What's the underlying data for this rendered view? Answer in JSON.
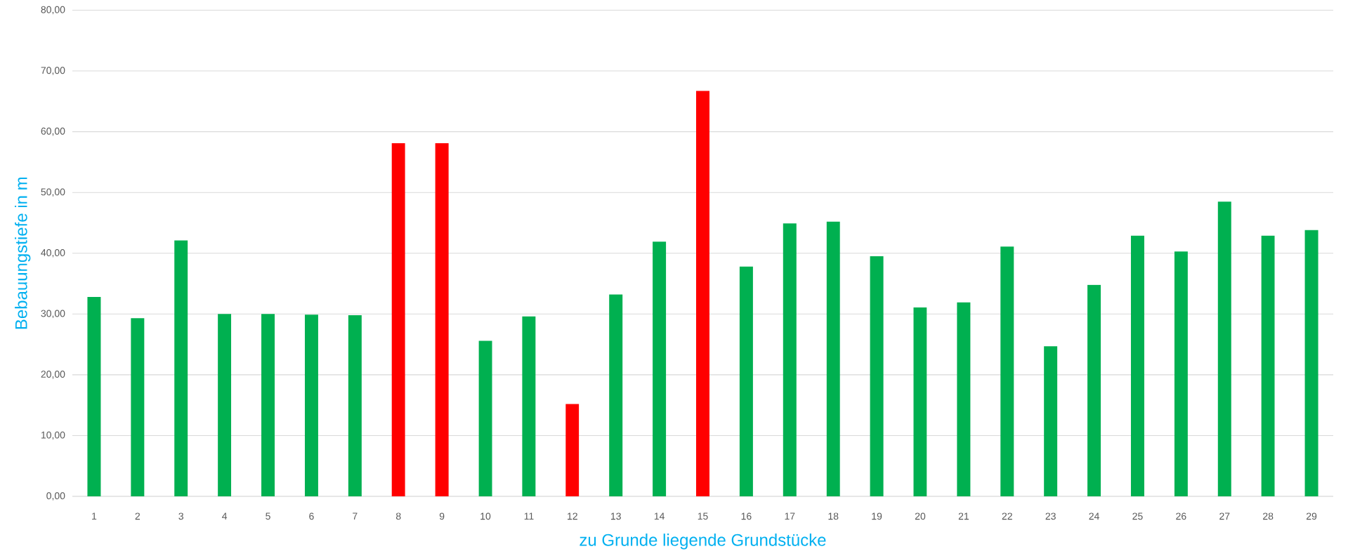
{
  "chart_data": {
    "type": "bar",
    "xlabel": "zu Grunde liegende Grundstücke",
    "ylabel": "Bebauungstiefe in m",
    "categories": [
      "1",
      "2",
      "3",
      "4",
      "5",
      "6",
      "7",
      "8",
      "9",
      "10",
      "11",
      "12",
      "13",
      "14",
      "15",
      "16",
      "17",
      "18",
      "19",
      "20",
      "21",
      "22",
      "23",
      "24",
      "25",
      "26",
      "27",
      "28",
      "29"
    ],
    "values": [
      32.8,
      29.3,
      42.1,
      30.0,
      30.0,
      29.9,
      29.8,
      58.1,
      58.1,
      25.6,
      29.6,
      15.2,
      33.2,
      41.9,
      66.7,
      37.8,
      44.9,
      45.2,
      39.5,
      31.1,
      31.9,
      41.1,
      24.7,
      34.8,
      42.9,
      40.3,
      48.5,
      42.9,
      43.8
    ],
    "colors": [
      "#00b050",
      "#00b050",
      "#00b050",
      "#00b050",
      "#00b050",
      "#00b050",
      "#00b050",
      "#ff0000",
      "#ff0000",
      "#00b050",
      "#00b050",
      "#ff0000",
      "#00b050",
      "#00b050",
      "#ff0000",
      "#00b050",
      "#00b050",
      "#00b050",
      "#00b050",
      "#00b050",
      "#00b050",
      "#00b050",
      "#00b050",
      "#00b050",
      "#00b050",
      "#00b050",
      "#00b050",
      "#00b050",
      "#00b050"
    ],
    "ylim": [
      0,
      80
    ],
    "yticks": [
      {
        "value": 0,
        "label": "0,00"
      },
      {
        "value": 10,
        "label": "10,00"
      },
      {
        "value": 20,
        "label": "20,00"
      },
      {
        "value": 30,
        "label": "30,00"
      },
      {
        "value": 40,
        "label": "40,00"
      },
      {
        "value": 50,
        "label": "50,00"
      },
      {
        "value": 60,
        "label": "60,00"
      },
      {
        "value": 70,
        "label": "70,00"
      },
      {
        "value": 80,
        "label": "80,00"
      }
    ],
    "grid": "y"
  }
}
